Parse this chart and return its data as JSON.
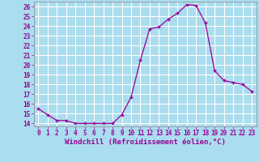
{
  "x": [
    0,
    1,
    2,
    3,
    4,
    5,
    6,
    7,
    8,
    9,
    10,
    11,
    12,
    13,
    14,
    15,
    16,
    17,
    18,
    19,
    20,
    21,
    22,
    23
  ],
  "y": [
    15.5,
    14.9,
    14.3,
    14.3,
    14.0,
    14.0,
    14.0,
    14.0,
    14.0,
    14.9,
    16.7,
    20.5,
    23.7,
    23.9,
    24.7,
    25.3,
    26.2,
    26.1,
    24.3,
    19.4,
    18.4,
    18.2,
    18.0,
    17.3
  ],
  "line_color": "#990099",
  "marker": "+",
  "bg_color": "#aaddee",
  "grid_color": "#ffffff",
  "xlabel": "Windchill (Refroidissement éolien,°C)",
  "ylabel": "",
  "ylim": [
    13.7,
    26.5
  ],
  "xlim": [
    -0.5,
    23.5
  ],
  "yticks": [
    14,
    15,
    16,
    17,
    18,
    19,
    20,
    21,
    22,
    23,
    24,
    25,
    26
  ],
  "xticks": [
    0,
    1,
    2,
    3,
    4,
    5,
    6,
    7,
    8,
    9,
    10,
    11,
    12,
    13,
    14,
    15,
    16,
    17,
    18,
    19,
    20,
    21,
    22,
    23
  ],
  "font_color": "#990099",
  "tick_fontsize": 5.5,
  "xlabel_fontsize": 6.5
}
